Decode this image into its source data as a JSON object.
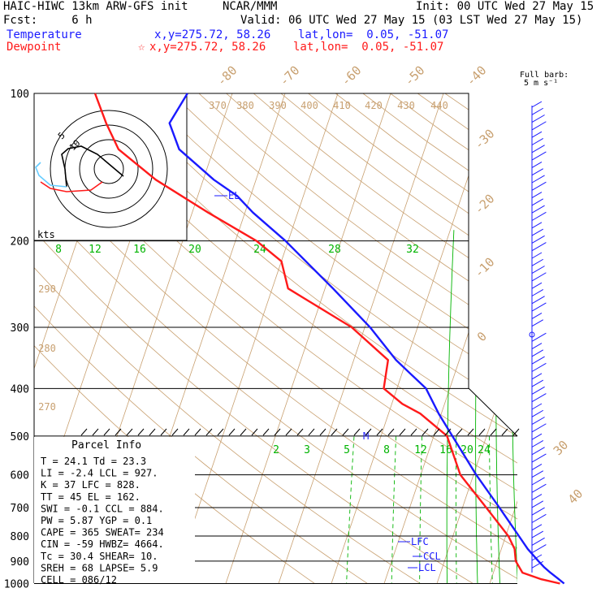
{
  "header": {
    "model": "HAIC-HIWC 13km ARW-GFS init",
    "org": "NCAR/MMM",
    "init": "Init: 00 UTC Wed 27 May 15",
    "fcst": "Fcst:     6 h",
    "valid": "Valid: 06 UTC Wed 27 May 15 (03 LST Wed 27 May 15)",
    "temp_label": "Temperature",
    "temp_loc": "x,y=275.72, 58.26    lat,lon=  0.05, -51.07",
    "dew_label": "Dewpoint",
    "dew_marker": "☆",
    "dew_loc": "x,y=275.72, 58.26    lat,lon=  0.05, -51.07"
  },
  "wind_scale": {
    "line1": "Full barb:",
    "line2": "5 m s⁻¹"
  },
  "parcel": {
    "title": "Parcel Info",
    "rows": [
      "T  =    24.1  Td =  23.3",
      "LI =    -2.4  LCL =  927.",
      "K  =      37  LFC =  828.",
      "TT =      45  EL  =  162.",
      "SWI =   -0.1  CCL =  884.",
      "PW =    5.87  YGP =   0.1",
      "CAPE =   365  SWEAT=  234",
      "CIN =    -59  HWBZ= 4664.",
      "Tc =    30.4  SHEAR=  10.",
      "SREH =    68  LAPSE=  5.9",
      "CELL = 086/12"
    ]
  },
  "hodograph": {
    "units": "kts",
    "ring_labels": [
      "5",
      "10"
    ]
  },
  "colors": {
    "temperature": "#1a1aff",
    "dewpoint": "#ff1a1a",
    "isotherm": "#c8a070",
    "mixing_ratio": "#00b400",
    "isobar": "#000000",
    "wind": "#1a1aff"
  },
  "chart_data": {
    "type": "line",
    "axis": {
      "y": "pressure (hPa, log)",
      "y_ticks": [
        100,
        200,
        300,
        400,
        500,
        600,
        700,
        800,
        900,
        1000
      ]
    },
    "isotherm_labels": [
      "-80",
      "-70",
      "-60",
      "-50",
      "-40",
      "-30",
      "-20",
      "-10",
      "0",
      "30",
      "40"
    ],
    "theta_labels": [
      "370",
      "380",
      "390",
      "400",
      "410",
      "420",
      "430",
      "440",
      "290",
      "280",
      "270"
    ],
    "mixing_ratio_upper": [
      "8",
      "12",
      "16",
      "20",
      "24",
      "28",
      "32"
    ],
    "mixing_ratio_lower": [
      "2",
      "3",
      "5",
      "8",
      "12",
      "16",
      "20",
      "24"
    ],
    "level_labels": [
      "EL",
      "M",
      "LFC",
      "CCL",
      "LCL"
    ],
    "series": [
      {
        "name": "Temperature",
        "points": [
          [
            1000,
            24.1
          ],
          [
            975,
            22.5
          ],
          [
            950,
            20.8
          ],
          [
            925,
            19.2
          ],
          [
            900,
            17.8
          ],
          [
            850,
            15.0
          ],
          [
            800,
            12.5
          ],
          [
            700,
            7.0
          ],
          [
            600,
            0.5
          ],
          [
            500,
            -6.5
          ],
          [
            450,
            -10.5
          ],
          [
            400,
            -14.5
          ],
          [
            350,
            -22.0
          ],
          [
            300,
            -29.0
          ],
          [
            250,
            -38.5
          ],
          [
            200,
            -50.5
          ],
          [
            175,
            -58.5
          ],
          [
            162,
            -62.5
          ],
          [
            150,
            -68.0
          ],
          [
            130,
            -76.5
          ],
          [
            115,
            -80.0
          ],
          [
            100,
            -78.5
          ]
        ]
      },
      {
        "name": "Dewpoint",
        "points": [
          [
            1000,
            23.3
          ],
          [
            980,
            19.5
          ],
          [
            950,
            15.5
          ],
          [
            900,
            13.5
          ],
          [
            850,
            12.5
          ],
          [
            800,
            10.5
          ],
          [
            700,
            4.5
          ],
          [
            600,
            -2.5
          ],
          [
            500,
            -7.5
          ],
          [
            450,
            -14.0
          ],
          [
            430,
            -18.0
          ],
          [
            400,
            -22.5
          ],
          [
            350,
            -23.5
          ],
          [
            300,
            -32.5
          ],
          [
            250,
            -47.0
          ],
          [
            220,
            -50.0
          ],
          [
            200,
            -56.0
          ],
          [
            175,
            -67.0
          ],
          [
            150,
            -79.0
          ],
          [
            130,
            -88.0
          ],
          [
            115,
            -92.0
          ],
          [
            100,
            -96.0
          ]
        ]
      }
    ]
  }
}
